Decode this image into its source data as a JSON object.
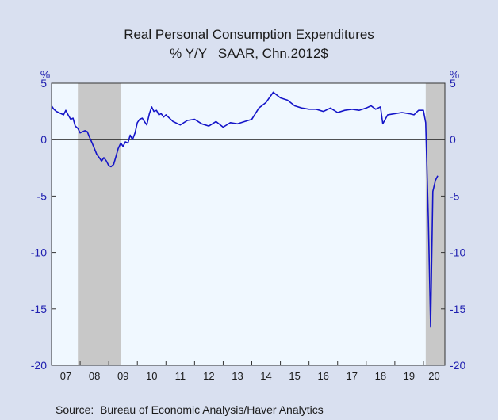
{
  "chart_data": {
    "type": "line",
    "title": "Real Personal Consumption Expenditures",
    "subtitle": "% Y/Y   SAAR, Chn.2012$",
    "y_unit_left": "%",
    "y_unit_right": "%",
    "ylim": [
      -20,
      5
    ],
    "yticks": [
      5,
      0,
      -5,
      -10,
      -15,
      -20
    ],
    "ytick_labels": [
      "5",
      "0",
      "-5",
      "-10",
      "-15",
      "-20"
    ],
    "xlim": [
      2007.0,
      2020.75
    ],
    "xtick_labels": [
      "07",
      "08",
      "09",
      "10",
      "11",
      "12",
      "13",
      "14",
      "15",
      "16",
      "17",
      "18",
      "19",
      "20"
    ],
    "source": "Source:  Bureau of Economic Analysis/Haver Analytics",
    "recessions": [
      [
        2007.92,
        2009.42
      ],
      [
        2020.08,
        2020.75
      ]
    ],
    "colors": {
      "line": "#1414c8",
      "recession": "#c8c8c8",
      "plot_bg": "#f0f8ff",
      "page_bg": "#d9e0f0"
    },
    "series": [
      {
        "x": [
          2007.0,
          2007.08,
          2007.17,
          2007.25,
          2007.33,
          2007.42,
          2007.5,
          2007.58,
          2007.67,
          2007.75,
          2007.83,
          2007.92,
          2008.0,
          2008.08,
          2008.17,
          2008.25,
          2008.33,
          2008.42,
          2008.5,
          2008.58,
          2008.67,
          2008.75,
          2008.83,
          2008.92,
          2009.0,
          2009.08,
          2009.17,
          2009.25,
          2009.33,
          2009.42,
          2009.5,
          2009.58,
          2009.67,
          2009.75,
          2009.83,
          2009.92,
          2010.0,
          2010.08,
          2010.17,
          2010.25,
          2010.33,
          2010.42,
          2010.5,
          2010.58,
          2010.67,
          2010.75,
          2010.83,
          2010.92,
          2011.0,
          2011.25,
          2011.5,
          2011.75,
          2012.0,
          2012.25,
          2012.5,
          2012.75,
          2013.0,
          2013.25,
          2013.5,
          2013.75,
          2014.0,
          2014.25,
          2014.5,
          2014.75,
          2015.0,
          2015.25,
          2015.5,
          2015.75,
          2016.0,
          2016.25,
          2016.5,
          2016.75,
          2017.0,
          2017.25,
          2017.5,
          2017.75,
          2018.0,
          2018.17,
          2018.33,
          2018.5,
          2018.58,
          2018.75,
          2019.0,
          2019.25,
          2019.5,
          2019.67,
          2019.83,
          2020.0,
          2020.08,
          2020.17,
          2020.25,
          2020.33,
          2020.42,
          2020.5
        ],
        "y": [
          3.0,
          2.7,
          2.5,
          2.4,
          2.3,
          2.2,
          2.6,
          2.2,
          1.8,
          1.9,
          1.2,
          1.0,
          0.6,
          0.7,
          0.8,
          0.7,
          0.2,
          -0.3,
          -0.8,
          -1.3,
          -1.6,
          -1.9,
          -1.6,
          -1.9,
          -2.3,
          -2.4,
          -2.2,
          -1.5,
          -0.8,
          -0.3,
          -0.6,
          -0.2,
          -0.3,
          0.4,
          0.0,
          0.6,
          1.5,
          1.8,
          1.9,
          1.6,
          1.3,
          2.3,
          2.9,
          2.5,
          2.6,
          2.2,
          2.3,
          2.0,
          2.2,
          1.6,
          1.3,
          1.7,
          1.8,
          1.4,
          1.2,
          1.6,
          1.1,
          1.5,
          1.4,
          1.6,
          1.8,
          2.8,
          3.3,
          4.2,
          3.7,
          3.5,
          3.0,
          2.8,
          2.7,
          2.7,
          2.5,
          2.8,
          2.4,
          2.6,
          2.7,
          2.6,
          2.8,
          3.0,
          2.7,
          2.9,
          1.4,
          2.2,
          2.3,
          2.4,
          2.3,
          2.2,
          2.6,
          2.6,
          1.5,
          -7.0,
          -16.6,
          -4.6,
          -3.6,
          -3.2
        ]
      }
    ]
  }
}
